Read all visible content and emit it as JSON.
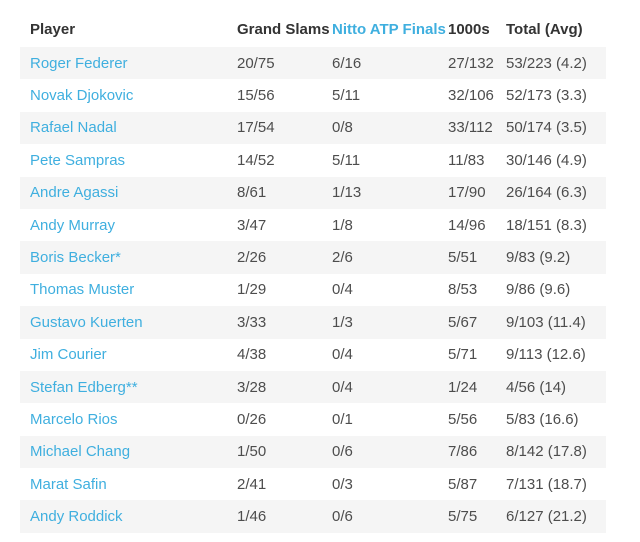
{
  "colors": {
    "link_blue": "#3fafdf",
    "row_stripe": "#f5f5f5",
    "value_text": "#4d4d4d",
    "header_text": "#333333",
    "background": "#ffffff"
  },
  "table": {
    "columns": [
      {
        "label": "Player"
      },
      {
        "label": "Grand Slams"
      },
      {
        "label": "Nitto ATP Finals"
      },
      {
        "label": "1000s"
      },
      {
        "label": "Total (Avg)"
      }
    ],
    "rows": [
      {
        "player": "Roger Federer",
        "grand_slams": "20/75",
        "nitto": "6/16",
        "thousands": "27/132",
        "total": "53/223 (4.2)"
      },
      {
        "player": "Novak Djokovic",
        "grand_slams": "15/56",
        "nitto": "5/11",
        "thousands": "32/106",
        "total": "52/173 (3.3)"
      },
      {
        "player": "Rafael Nadal",
        "grand_slams": "17/54",
        "nitto": "0/8",
        "thousands": "33/112",
        "total": "50/174 (3.5)"
      },
      {
        "player": "Pete Sampras",
        "grand_slams": "14/52",
        "nitto": "5/11",
        "thousands": "11/83",
        "total": "30/146 (4.9)"
      },
      {
        "player": "Andre Agassi",
        "grand_slams": "8/61",
        "nitto": "1/13",
        "thousands": "17/90",
        "total": "26/164 (6.3)"
      },
      {
        "player": "Andy Murray",
        "grand_slams": "3/47",
        "nitto": "1/8",
        "thousands": "14/96",
        "total": "18/151 (8.3)"
      },
      {
        "player": "Boris Becker*",
        "grand_slams": "2/26",
        "nitto": "2/6",
        "thousands": "5/51",
        "total": "9/83 (9.2)"
      },
      {
        "player": "Thomas Muster",
        "grand_slams": "1/29",
        "nitto": "0/4",
        "thousands": "8/53",
        "total": "9/86 (9.6)"
      },
      {
        "player": "Gustavo Kuerten",
        "grand_slams": "3/33",
        "nitto": "1/3",
        "thousands": "5/67",
        "total": "9/103 (11.4)"
      },
      {
        "player": "Jim Courier",
        "grand_slams": "4/38",
        "nitto": "0/4",
        "thousands": "5/71",
        "total": "9/113 (12.6)"
      },
      {
        "player": "Stefan Edberg**",
        "grand_slams": "3/28",
        "nitto": "0/4",
        "thousands": "1/24",
        "total": "4/56 (14)"
      },
      {
        "player": "Marcelo Rios",
        "grand_slams": "0/26",
        "nitto": "0/1",
        "thousands": "5/56",
        "total": "5/83 (16.6)"
      },
      {
        "player": "Michael Chang",
        "grand_slams": "1/50",
        "nitto": "0/6",
        "thousands": "7/86",
        "total": "8/142 (17.8)"
      },
      {
        "player": "Marat Safin",
        "grand_slams": "2/41",
        "nitto": "0/3",
        "thousands": "5/87",
        "total": "7/131 (18.7)"
      },
      {
        "player": "Andy Roddick",
        "grand_slams": "1/46",
        "nitto": "0/6",
        "thousands": "5/75",
        "total": "6/127 (21.2)"
      }
    ]
  }
}
